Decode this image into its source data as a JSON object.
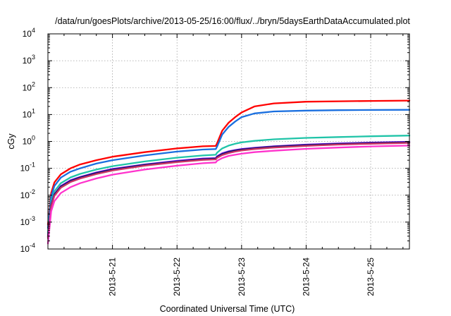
{
  "chart_data": {
    "type": "line",
    "title": "/data/run/goesPlots/archive/2013-05-25/16:00/flux/../bryn/5daysEarthDataAccumulated.plot",
    "xlabel": "Coordinated Universal Time (UTC)",
    "ylabel": "cGy",
    "x_unit": "day",
    "xlim": [
      0.0,
      5.6
    ],
    "y_scale": "log",
    "ylim": [
      0.0001,
      10000
    ],
    "y_ticks": [
      {
        "base": "10",
        "exp": "-4",
        "value": 0.0001
      },
      {
        "base": "10",
        "exp": "-3",
        "value": 0.001
      },
      {
        "base": "10",
        "exp": "-2",
        "value": 0.01
      },
      {
        "base": "10",
        "exp": "-1",
        "value": 0.1
      },
      {
        "base": "10",
        "exp": "0",
        "value": 1
      },
      {
        "base": "10",
        "exp": "1",
        "value": 10
      },
      {
        "base": "10",
        "exp": "2",
        "value": 100
      },
      {
        "base": "10",
        "exp": "3",
        "value": 1000
      },
      {
        "base": "10",
        "exp": "4",
        "value": 10000
      }
    ],
    "x_ticks": [
      {
        "label": "2013-5-21",
        "value": 1.0
      },
      {
        "label": "2013-5-22",
        "value": 2.0
      },
      {
        "label": "2013-5-23",
        "value": 3.0
      },
      {
        "label": "2013-5-24",
        "value": 4.0
      },
      {
        "label": "2013-5-25",
        "value": 5.0
      }
    ],
    "grid": true,
    "legend": "none",
    "series": [
      {
        "color": "#ff0000",
        "x": [
          0.0,
          0.05,
          0.1,
          0.2,
          0.35,
          0.5,
          0.75,
          1.0,
          1.5,
          2.0,
          2.4,
          2.6,
          2.62,
          2.7,
          2.8,
          2.9,
          3.0,
          3.2,
          3.5,
          4.0,
          4.5,
          5.0,
          5.6
        ],
        "y": [
          0.0008,
          0.012,
          0.03,
          0.06,
          0.1,
          0.14,
          0.2,
          0.27,
          0.4,
          0.55,
          0.66,
          0.68,
          0.85,
          2.5,
          5.0,
          8.0,
          12.0,
          20.0,
          26.0,
          30.0,
          31.0,
          32.0,
          33.0
        ]
      },
      {
        "color": "#1a6fdf",
        "x": [
          0.0,
          0.05,
          0.1,
          0.2,
          0.35,
          0.5,
          0.75,
          1.0,
          1.5,
          2.0,
          2.4,
          2.6,
          2.62,
          2.7,
          2.8,
          2.9,
          3.0,
          3.2,
          3.5,
          4.0,
          4.5,
          5.0,
          5.6
        ],
        "y": [
          0.0006,
          0.009,
          0.022,
          0.045,
          0.075,
          0.1,
          0.15,
          0.2,
          0.3,
          0.42,
          0.5,
          0.52,
          0.64,
          1.8,
          3.5,
          5.5,
          8.0,
          11.0,
          13.0,
          14.0,
          14.5,
          14.8,
          15.0
        ]
      },
      {
        "color": "#20c4a8",
        "x": [
          0.0,
          0.05,
          0.1,
          0.2,
          0.35,
          0.5,
          0.75,
          1.0,
          1.5,
          2.0,
          2.4,
          2.6,
          2.62,
          2.7,
          2.8,
          2.9,
          3.0,
          3.2,
          3.5,
          4.0,
          4.5,
          5.0,
          5.6
        ],
        "y": [
          0.0004,
          0.006,
          0.014,
          0.028,
          0.046,
          0.062,
          0.09,
          0.12,
          0.18,
          0.25,
          0.3,
          0.32,
          0.38,
          0.55,
          0.7,
          0.82,
          0.92,
          1.05,
          1.2,
          1.35,
          1.45,
          1.55,
          1.65
        ]
      },
      {
        "color": "#7f00ff",
        "x": [
          0.0,
          0.05,
          0.1,
          0.2,
          0.35,
          0.5,
          0.75,
          1.0,
          1.5,
          2.0,
          2.4,
          2.6,
          2.62,
          2.7,
          2.8,
          2.9,
          3.0,
          3.2,
          3.5,
          4.0,
          4.5,
          5.0,
          5.6
        ],
        "y": [
          0.0003,
          0.0045,
          0.011,
          0.022,
          0.036,
          0.048,
          0.07,
          0.095,
          0.14,
          0.19,
          0.23,
          0.24,
          0.28,
          0.36,
          0.43,
          0.48,
          0.52,
          0.58,
          0.66,
          0.76,
          0.84,
          0.9,
          0.97
        ]
      },
      {
        "color": "#1a1a66",
        "x": [
          0.0,
          0.05,
          0.1,
          0.2,
          0.35,
          0.5,
          0.75,
          1.0,
          1.5,
          2.0,
          2.4,
          2.6,
          2.62,
          2.7,
          2.8,
          2.9,
          3.0,
          3.2,
          3.5,
          4.0,
          4.5,
          5.0,
          5.6
        ],
        "y": [
          0.00028,
          0.0042,
          0.0105,
          0.021,
          0.034,
          0.046,
          0.067,
          0.09,
          0.135,
          0.18,
          0.22,
          0.23,
          0.265,
          0.34,
          0.41,
          0.46,
          0.5,
          0.56,
          0.64,
          0.73,
          0.81,
          0.87,
          0.93
        ]
      },
      {
        "color": "#cc3366",
        "x": [
          0.0,
          0.05,
          0.1,
          0.2,
          0.35,
          0.5,
          0.75,
          1.0,
          1.5,
          2.0,
          2.4,
          2.6,
          2.62,
          2.7,
          2.8,
          2.9,
          3.0,
          3.2,
          3.5,
          4.0,
          4.5,
          5.0,
          5.6
        ],
        "y": [
          0.00025,
          0.0038,
          0.0095,
          0.019,
          0.031,
          0.042,
          0.061,
          0.083,
          0.125,
          0.17,
          0.205,
          0.215,
          0.245,
          0.31,
          0.37,
          0.42,
          0.46,
          0.52,
          0.59,
          0.68,
          0.76,
          0.82,
          0.88
        ]
      },
      {
        "color": "#ff33cc",
        "x": [
          0.0,
          0.05,
          0.1,
          0.2,
          0.35,
          0.5,
          0.75,
          1.0,
          1.5,
          2.0,
          2.4,
          2.6,
          2.62,
          2.7,
          2.8,
          2.9,
          3.0,
          3.2,
          3.5,
          4.0,
          4.5,
          5.0,
          5.6
        ],
        "y": [
          0.00016,
          0.0025,
          0.006,
          0.012,
          0.02,
          0.028,
          0.042,
          0.058,
          0.09,
          0.125,
          0.155,
          0.165,
          0.19,
          0.24,
          0.29,
          0.32,
          0.35,
          0.4,
          0.45,
          0.53,
          0.59,
          0.65,
          0.7
        ]
      }
    ]
  }
}
